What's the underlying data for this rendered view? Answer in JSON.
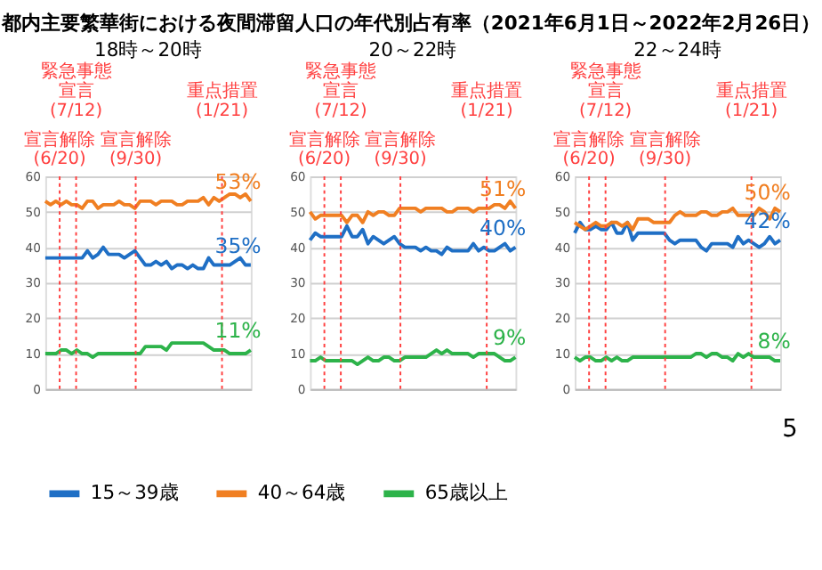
{
  "chart_data": [
    {
      "type": "line",
      "title": "18時～20時",
      "annotations": [
        "都内主要繁華街における夜間滞留人口の年代別占有率（2021年6月1日～2022年2月26日）",
        "宣言解除(6/20)",
        "緊急事態宣言(7/12)",
        "宣言解除(9/30)",
        "重点措置(1/21)"
      ],
      "categories": [
        null,
        null,
        null,
        null,
        null,
        null,
        null,
        null,
        null,
        null,
        null,
        null,
        null,
        null,
        null,
        null,
        null,
        null,
        null,
        null,
        null,
        null,
        null,
        null,
        null,
        null,
        null,
        null,
        null,
        null,
        null,
        null,
        null,
        null,
        null,
        null,
        null,
        null,
        null,
        null
      ],
      "ylim": [
        0,
        60
      ],
      "yticks": [
        0,
        10,
        20,
        30,
        40,
        50,
        60
      ],
      "grid": "y",
      "legend": "bottom",
      "series": [
        {
          "name": "15～39歳",
          "color": "#1f6fc5",
          "values": [
            37,
            37,
            37,
            37,
            37,
            37,
            37,
            37,
            39,
            37,
            38,
            40,
            38,
            38,
            38,
            37,
            38,
            39,
            37,
            35,
            35,
            36,
            35,
            36,
            34,
            35,
            35,
            34,
            35,
            34,
            34,
            37,
            35,
            35,
            35,
            35,
            36,
            37,
            35,
            35
          ],
          "value_labels": [
            null,
            null,
            null,
            null,
            null,
            null,
            null,
            null,
            null,
            null,
            null,
            null,
            null,
            null,
            null,
            null,
            null,
            null,
            null,
            null,
            null,
            null,
            null,
            null,
            null,
            null,
            null,
            null,
            null,
            null,
            null,
            null,
            null,
            null,
            null,
            null,
            null,
            null,
            null,
            "35%"
          ]
        },
        {
          "name": "40～64歳",
          "color": "#f07f22",
          "values": [
            53,
            52,
            53,
            52,
            53,
            52,
            52,
            51,
            53,
            53,
            51,
            52,
            52,
            52,
            53,
            52,
            52,
            51,
            53,
            53,
            53,
            52,
            53,
            53,
            53,
            52,
            52,
            53,
            53,
            53,
            54,
            52,
            54,
            53,
            54,
            55,
            55,
            54,
            55,
            53
          ],
          "value_labels": [
            null,
            null,
            null,
            null,
            null,
            null,
            null,
            null,
            null,
            null,
            null,
            null,
            null,
            null,
            null,
            null,
            null,
            null,
            null,
            null,
            null,
            null,
            null,
            null,
            null,
            null,
            null,
            null,
            null,
            null,
            null,
            null,
            null,
            null,
            null,
            null,
            null,
            null,
            null,
            "53%"
          ]
        },
        {
          "name": "65歳以上",
          "color": "#2db34a",
          "values": [
            10,
            10,
            10,
            11,
            11,
            10,
            11,
            10,
            10,
            9,
            10,
            10,
            10,
            10,
            10,
            10,
            10,
            10,
            10,
            12,
            12,
            12,
            12,
            11,
            13,
            13,
            13,
            13,
            13,
            13,
            13,
            12,
            11,
            11,
            11,
            10,
            10,
            10,
            10,
            11
          ],
          "value_labels": [
            null,
            null,
            null,
            null,
            null,
            null,
            null,
            null,
            null,
            null,
            null,
            null,
            null,
            null,
            null,
            null,
            null,
            null,
            null,
            null,
            null,
            null,
            null,
            null,
            null,
            null,
            null,
            null,
            null,
            null,
            null,
            null,
            null,
            null,
            null,
            null,
            null,
            null,
            null,
            "11%"
          ]
        }
      ],
      "marker": "none"
    },
    {
      "type": "line",
      "title": "20～22時",
      "annotations": [
        "宣言解除(6/20)",
        "緊急事態宣言(7/12)",
        "宣言解除(9/30)",
        "重点措置(1/21)"
      ],
      "categories": [
        null,
        null,
        null,
        null,
        null,
        null,
        null,
        null,
        null,
        null,
        null,
        null,
        null,
        null,
        null,
        null,
        null,
        null,
        null,
        null,
        null,
        null,
        null,
        null,
        null,
        null,
        null,
        null,
        null,
        null,
        null,
        null,
        null,
        null,
        null,
        null,
        null,
        null,
        null,
        null
      ],
      "ylim": [
        0,
        60
      ],
      "yticks": [
        0,
        10,
        20,
        30,
        40,
        50,
        60
      ],
      "grid": "y",
      "series": [
        {
          "color": "#1f6fc5",
          "values": [
            42,
            44,
            43,
            43,
            43,
            43,
            43,
            46,
            43,
            43,
            45,
            41,
            43,
            42,
            41,
            42,
            43,
            41,
            40,
            40,
            40,
            39,
            40,
            39,
            39,
            38,
            40,
            39,
            39,
            39,
            39,
            41,
            39,
            40,
            39,
            39,
            40,
            41,
            39,
            40
          ],
          "value_labels": [
            null,
            null,
            null,
            null,
            null,
            null,
            null,
            null,
            null,
            null,
            null,
            null,
            null,
            null,
            null,
            null,
            null,
            null,
            null,
            null,
            null,
            null,
            null,
            null,
            null,
            null,
            null,
            null,
            null,
            null,
            null,
            null,
            null,
            null,
            null,
            null,
            null,
            null,
            null,
            "40%"
          ]
        },
        {
          "color": "#f07f22",
          "values": [
            50,
            48,
            49,
            49,
            49,
            49,
            49,
            47,
            49,
            49,
            47,
            50,
            49,
            50,
            50,
            49,
            49,
            51,
            51,
            51,
            51,
            50,
            51,
            51,
            51,
            51,
            50,
            50,
            51,
            51,
            51,
            50,
            51,
            51,
            51,
            52,
            52,
            51,
            53,
            51
          ],
          "value_labels": [
            null,
            null,
            null,
            null,
            null,
            null,
            null,
            null,
            null,
            null,
            null,
            null,
            null,
            null,
            null,
            null,
            null,
            null,
            null,
            null,
            null,
            null,
            null,
            null,
            null,
            null,
            null,
            null,
            null,
            null,
            null,
            null,
            null,
            null,
            null,
            null,
            null,
            null,
            null,
            "51%"
          ]
        },
        {
          "color": "#2db34a",
          "values": [
            8,
            8,
            9,
            8,
            8,
            8,
            8,
            8,
            8,
            7,
            8,
            9,
            8,
            8,
            9,
            9,
            8,
            8,
            9,
            9,
            9,
            9,
            9,
            10,
            11,
            10,
            11,
            10,
            10,
            10,
            10,
            9,
            10,
            10,
            10,
            10,
            9,
            8,
            8,
            9
          ],
          "value_labels": [
            null,
            null,
            null,
            null,
            null,
            null,
            null,
            null,
            null,
            null,
            null,
            null,
            null,
            null,
            null,
            null,
            null,
            null,
            null,
            null,
            null,
            null,
            null,
            null,
            null,
            null,
            null,
            null,
            null,
            null,
            null,
            null,
            null,
            null,
            null,
            null,
            null,
            null,
            null,
            "9%"
          ]
        }
      ],
      "marker": "none"
    },
    {
      "type": "line",
      "title": "22～24時",
      "annotations": [
        "宣言解除(6/20)",
        "緊急事態宣言(7/12)",
        "宣言解除(9/30)",
        "重点措置(1/21)",
        "5"
      ],
      "categories": [
        null,
        null,
        null,
        null,
        null,
        null,
        null,
        null,
        null,
        null,
        null,
        null,
        null,
        null,
        null,
        null,
        null,
        null,
        null,
        null,
        null,
        null,
        null,
        null,
        null,
        null,
        null,
        null,
        null,
        null,
        null,
        null,
        null,
        null,
        null,
        null,
        null,
        null,
        null,
        null
      ],
      "ylim": [
        0,
        60
      ],
      "yticks": [
        0,
        10,
        20,
        30,
        40,
        50,
        60
      ],
      "grid": "y",
      "series": [
        {
          "color": "#1f6fc5",
          "values": [
            44,
            47,
            45,
            45,
            46,
            45,
            45,
            47,
            44,
            44,
            47,
            42,
            44,
            44,
            44,
            44,
            44,
            44,
            42,
            41,
            42,
            42,
            42,
            42,
            40,
            39,
            41,
            41,
            41,
            41,
            40,
            43,
            41,
            42,
            41,
            40,
            41,
            43,
            41,
            42
          ],
          "value_labels": [
            null,
            null,
            null,
            null,
            null,
            null,
            null,
            null,
            null,
            null,
            null,
            null,
            null,
            null,
            null,
            null,
            null,
            null,
            null,
            null,
            null,
            null,
            null,
            null,
            null,
            null,
            null,
            null,
            null,
            null,
            null,
            null,
            null,
            null,
            null,
            null,
            null,
            null,
            null,
            "42%"
          ]
        },
        {
          "color": "#f07f22",
          "values": [
            47,
            46,
            45,
            46,
            47,
            46,
            46,
            47,
            47,
            46,
            47,
            45,
            48,
            48,
            48,
            47,
            47,
            47,
            47,
            49,
            50,
            49,
            49,
            49,
            50,
            50,
            49,
            49,
            50,
            50,
            51,
            49,
            49,
            49,
            49,
            51,
            50,
            48,
            51,
            50
          ],
          "value_labels": [
            null,
            null,
            null,
            null,
            null,
            null,
            null,
            null,
            null,
            null,
            null,
            null,
            null,
            null,
            null,
            null,
            null,
            null,
            null,
            null,
            null,
            null,
            null,
            null,
            null,
            null,
            null,
            null,
            null,
            null,
            null,
            null,
            null,
            null,
            null,
            null,
            null,
            null,
            null,
            "50%"
          ]
        },
        {
          "color": "#2db34a",
          "values": [
            9,
            8,
            9,
            9,
            8,
            8,
            9,
            8,
            9,
            8,
            8,
            9,
            9,
            9,
            9,
            9,
            9,
            9,
            9,
            9,
            9,
            9,
            9,
            10,
            10,
            9,
            10,
            10,
            9,
            9,
            8,
            10,
            9,
            10,
            9,
            9,
            9,
            9,
            8,
            8
          ],
          "value_labels": [
            null,
            null,
            null,
            null,
            null,
            null,
            null,
            null,
            null,
            null,
            null,
            null,
            null,
            null,
            null,
            null,
            null,
            null,
            null,
            null,
            null,
            null,
            null,
            null,
            null,
            null,
            null,
            null,
            null,
            null,
            null,
            null,
            null,
            null,
            null,
            null,
            null,
            null,
            null,
            "8%"
          ]
        }
      ],
      "marker": "none"
    }
  ]
}
